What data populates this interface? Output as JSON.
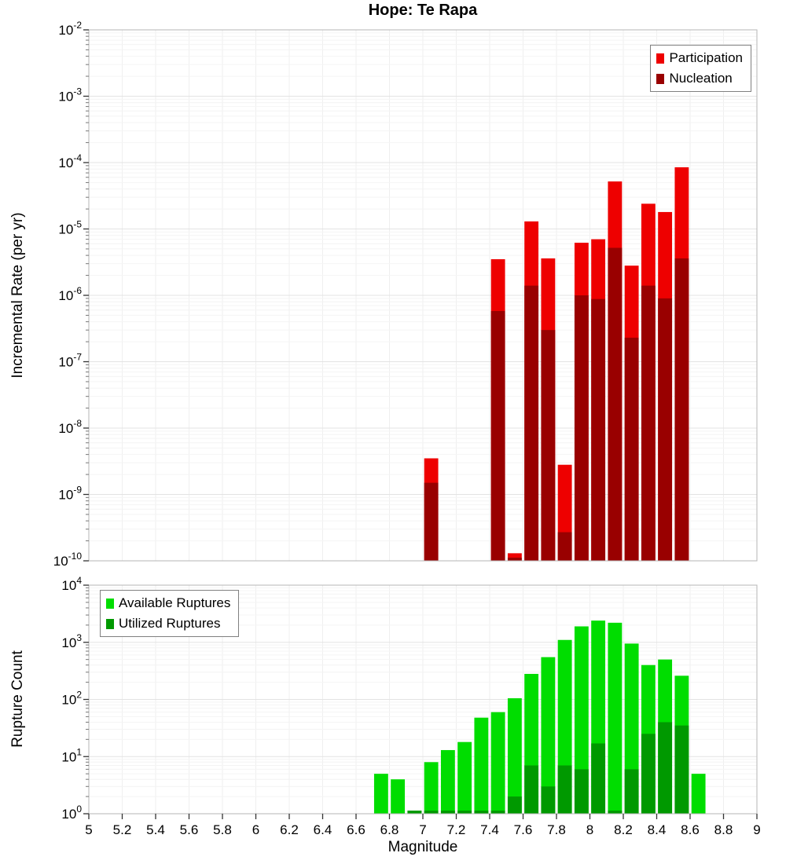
{
  "title": "Hope: Te Rapa",
  "chart_data": [
    {
      "type": "bar",
      "title": "Hope: Te Rapa",
      "xlabel": "Magnitude",
      "ylabel": "Incremental Rate (per yr)",
      "xlim": [
        5,
        9
      ],
      "yscale": "log",
      "ylim": [
        1e-10,
        0.01
      ],
      "y_tick_exponents": [
        -2,
        -3,
        -4,
        -5,
        -6,
        -7,
        -8,
        -9,
        -10
      ],
      "grid": true,
      "legend_position": "top-right",
      "bin_width": 0.1,
      "categories": [
        7.05,
        7.45,
        7.55,
        7.65,
        7.75,
        7.85,
        7.95,
        8.05,
        8.15,
        8.25,
        8.35,
        8.45,
        8.55
      ],
      "series": [
        {
          "name": "Participation",
          "color": "#ee0000",
          "values": [
            3.5e-09,
            3.5e-06,
            1.3e-10,
            1.3e-05,
            3.6e-06,
            2.8e-09,
            6.2e-06,
            7e-06,
            5.2e-05,
            2.8e-06,
            2.4e-05,
            1.8e-05,
            8.5e-05
          ]
        },
        {
          "name": "Nucleation",
          "color": "#990000",
          "values": [
            1.5e-09,
            5.8e-07,
            1.1e-10,
            1.4e-06,
            3e-07,
            2.7e-10,
            1e-06,
            8.8e-07,
            5.2e-06,
            2.3e-07,
            1.4e-06,
            9e-07,
            3.6e-06
          ]
        }
      ]
    },
    {
      "type": "bar",
      "xlabel": "Magnitude",
      "ylabel": "Rupture Count",
      "xlim": [
        5,
        9
      ],
      "yscale": "log",
      "ylim": [
        1,
        10000
      ],
      "y_tick_exponents": [
        4,
        3,
        2,
        1,
        0
      ],
      "x_tick_labels": [
        "5",
        "5.2",
        "5.4",
        "5.6",
        "5.8",
        "6",
        "6.2",
        "6.4",
        "6.6",
        "6.8",
        "7",
        "7.2",
        "7.4",
        "7.6",
        "7.8",
        "8",
        "8.2",
        "8.4",
        "8.6",
        "8.8",
        "9"
      ],
      "grid": true,
      "legend_position": "top-left",
      "bin_width": 0.1,
      "categories": [
        6.75,
        6.85,
        6.95,
        7.05,
        7.15,
        7.25,
        7.35,
        7.45,
        7.55,
        7.65,
        7.75,
        7.85,
        7.95,
        8.05,
        8.15,
        8.25,
        8.35,
        8.45,
        8.55,
        8.65
      ],
      "series": [
        {
          "name": "Available Ruptures",
          "color": "#00dd00",
          "values": [
            5,
            4,
            1,
            8,
            13,
            18,
            48,
            60,
            105,
            280,
            550,
            1100,
            1900,
            2400,
            2200,
            950,
            400,
            500,
            260,
            5
          ]
        },
        {
          "name": "Utilized Ruptures",
          "color": "#009900",
          "values": [
            0,
            0,
            1,
            1,
            1,
            1,
            1,
            1,
            2,
            7,
            3,
            7,
            6,
            17,
            1,
            6,
            25,
            40,
            35,
            0
          ]
        }
      ]
    }
  ]
}
